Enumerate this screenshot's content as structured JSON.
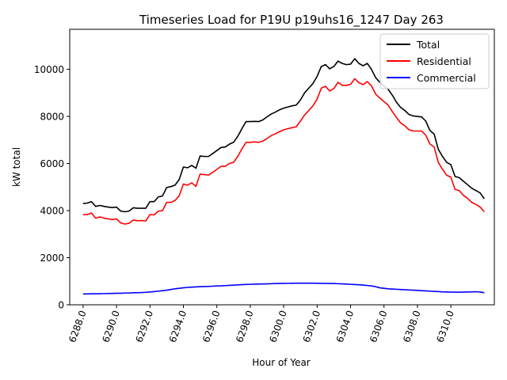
{
  "chart_data": {
    "type": "line",
    "title": "Timeseries Load for P19U p19uhs16_1247  Day 263",
    "xlabel": "Hour of Year",
    "ylabel": "kW total",
    "xlim": [
      6287.2,
      6312.6
    ],
    "ylim": [
      0,
      11700
    ],
    "xticks": [
      6288,
      6290,
      6292,
      6294,
      6296,
      6298,
      6300,
      6302,
      6304,
      6306,
      6308,
      6310
    ],
    "xtick_labels": [
      "6288.0",
      "6290.0",
      "6292.0",
      "6294.0",
      "6296.0",
      "6298.0",
      "6300.0",
      "6302.0",
      "6304.0",
      "6306.0",
      "6308.0",
      "6310.0"
    ],
    "yticks": [
      0,
      2000,
      4000,
      6000,
      8000,
      10000
    ],
    "ytick_labels": [
      "0",
      "2000",
      "4000",
      "6000",
      "8000",
      "10000"
    ],
    "legend_position": "top-right",
    "x_start": 6288.0,
    "x_step": 0.25,
    "series": [
      {
        "name": "Total",
        "color": "#000000",
        "values": [
          4300,
          4320,
          4380,
          4180,
          4220,
          4180,
          4150,
          4130,
          4150,
          3980,
          3950,
          3980,
          4120,
          4100,
          4100,
          4100,
          4380,
          4380,
          4580,
          4620,
          4980,
          5020,
          5080,
          5320,
          5850,
          5820,
          5920,
          5800,
          6320,
          6300,
          6300,
          6420,
          6550,
          6680,
          6700,
          6820,
          6900,
          7150,
          7480,
          7780,
          7780,
          7790,
          7780,
          7850,
          7980,
          8100,
          8180,
          8280,
          8350,
          8400,
          8450,
          8480,
          8700,
          9000,
          9200,
          9400,
          9700,
          10120,
          10200,
          10020,
          10120,
          10350,
          10250,
          10200,
          10220,
          10450,
          10250,
          10150,
          10250,
          10000,
          9650,
          9450,
          9300,
          9150,
          8900,
          8600,
          8380,
          8250,
          8080,
          8020,
          8000,
          7980,
          7800,
          7400,
          7250,
          6600,
          6300,
          6050,
          5950,
          5450,
          5400,
          5250,
          5100,
          4950,
          4850,
          4750,
          4500
        ]
      },
      {
        "name": "Residential",
        "color": "#ff0000",
        "values": [
          3830,
          3830,
          3900,
          3680,
          3730,
          3680,
          3650,
          3620,
          3650,
          3480,
          3430,
          3460,
          3600,
          3570,
          3580,
          3560,
          3830,
          3820,
          3980,
          4000,
          4350,
          4350,
          4430,
          4630,
          5130,
          5080,
          5180,
          5030,
          5550,
          5530,
          5510,
          5620,
          5750,
          5880,
          5880,
          6000,
          6050,
          6300,
          6620,
          6900,
          6900,
          6920,
          6900,
          6950,
          7060,
          7180,
          7260,
          7350,
          7430,
          7480,
          7520,
          7560,
          7800,
          8060,
          8250,
          8450,
          8740,
          9200,
          9280,
          9080,
          9180,
          9450,
          9320,
          9320,
          9360,
          9600,
          9430,
          9350,
          9480,
          9300,
          8950,
          8780,
          8630,
          8480,
          8200,
          7950,
          7720,
          7600,
          7430,
          7380,
          7380,
          7380,
          7200,
          6830,
          6700,
          6050,
          5750,
          5500,
          5420,
          4900,
          4850,
          4650,
          4520,
          4350,
          4260,
          4150,
          3950
        ]
      },
      {
        "name": "Commercial",
        "color": "#0000ff",
        "values": [
          460,
          460,
          470,
          470,
          470,
          475,
          480,
          480,
          490,
          490,
          500,
          500,
          510,
          515,
          520,
          530,
          545,
          560,
          580,
          600,
          620,
          650,
          680,
          700,
          720,
          740,
          750,
          760,
          770,
          775,
          780,
          790,
          800,
          805,
          815,
          825,
          835,
          845,
          855,
          865,
          870,
          875,
          880,
          885,
          890,
          895,
          900,
          905,
          910,
          912,
          915,
          918,
          918,
          918,
          918,
          918,
          915,
          910,
          905,
          905,
          900,
          895,
          890,
          880,
          870,
          860,
          850,
          840,
          820,
          800,
          770,
          720,
          700,
          680,
          670,
          660,
          650,
          640,
          630,
          620,
          610,
          600,
          590,
          580,
          570,
          560,
          550,
          545,
          540,
          535,
          535,
          540,
          545,
          550,
          555,
          545,
          510
        ]
      }
    ]
  }
}
